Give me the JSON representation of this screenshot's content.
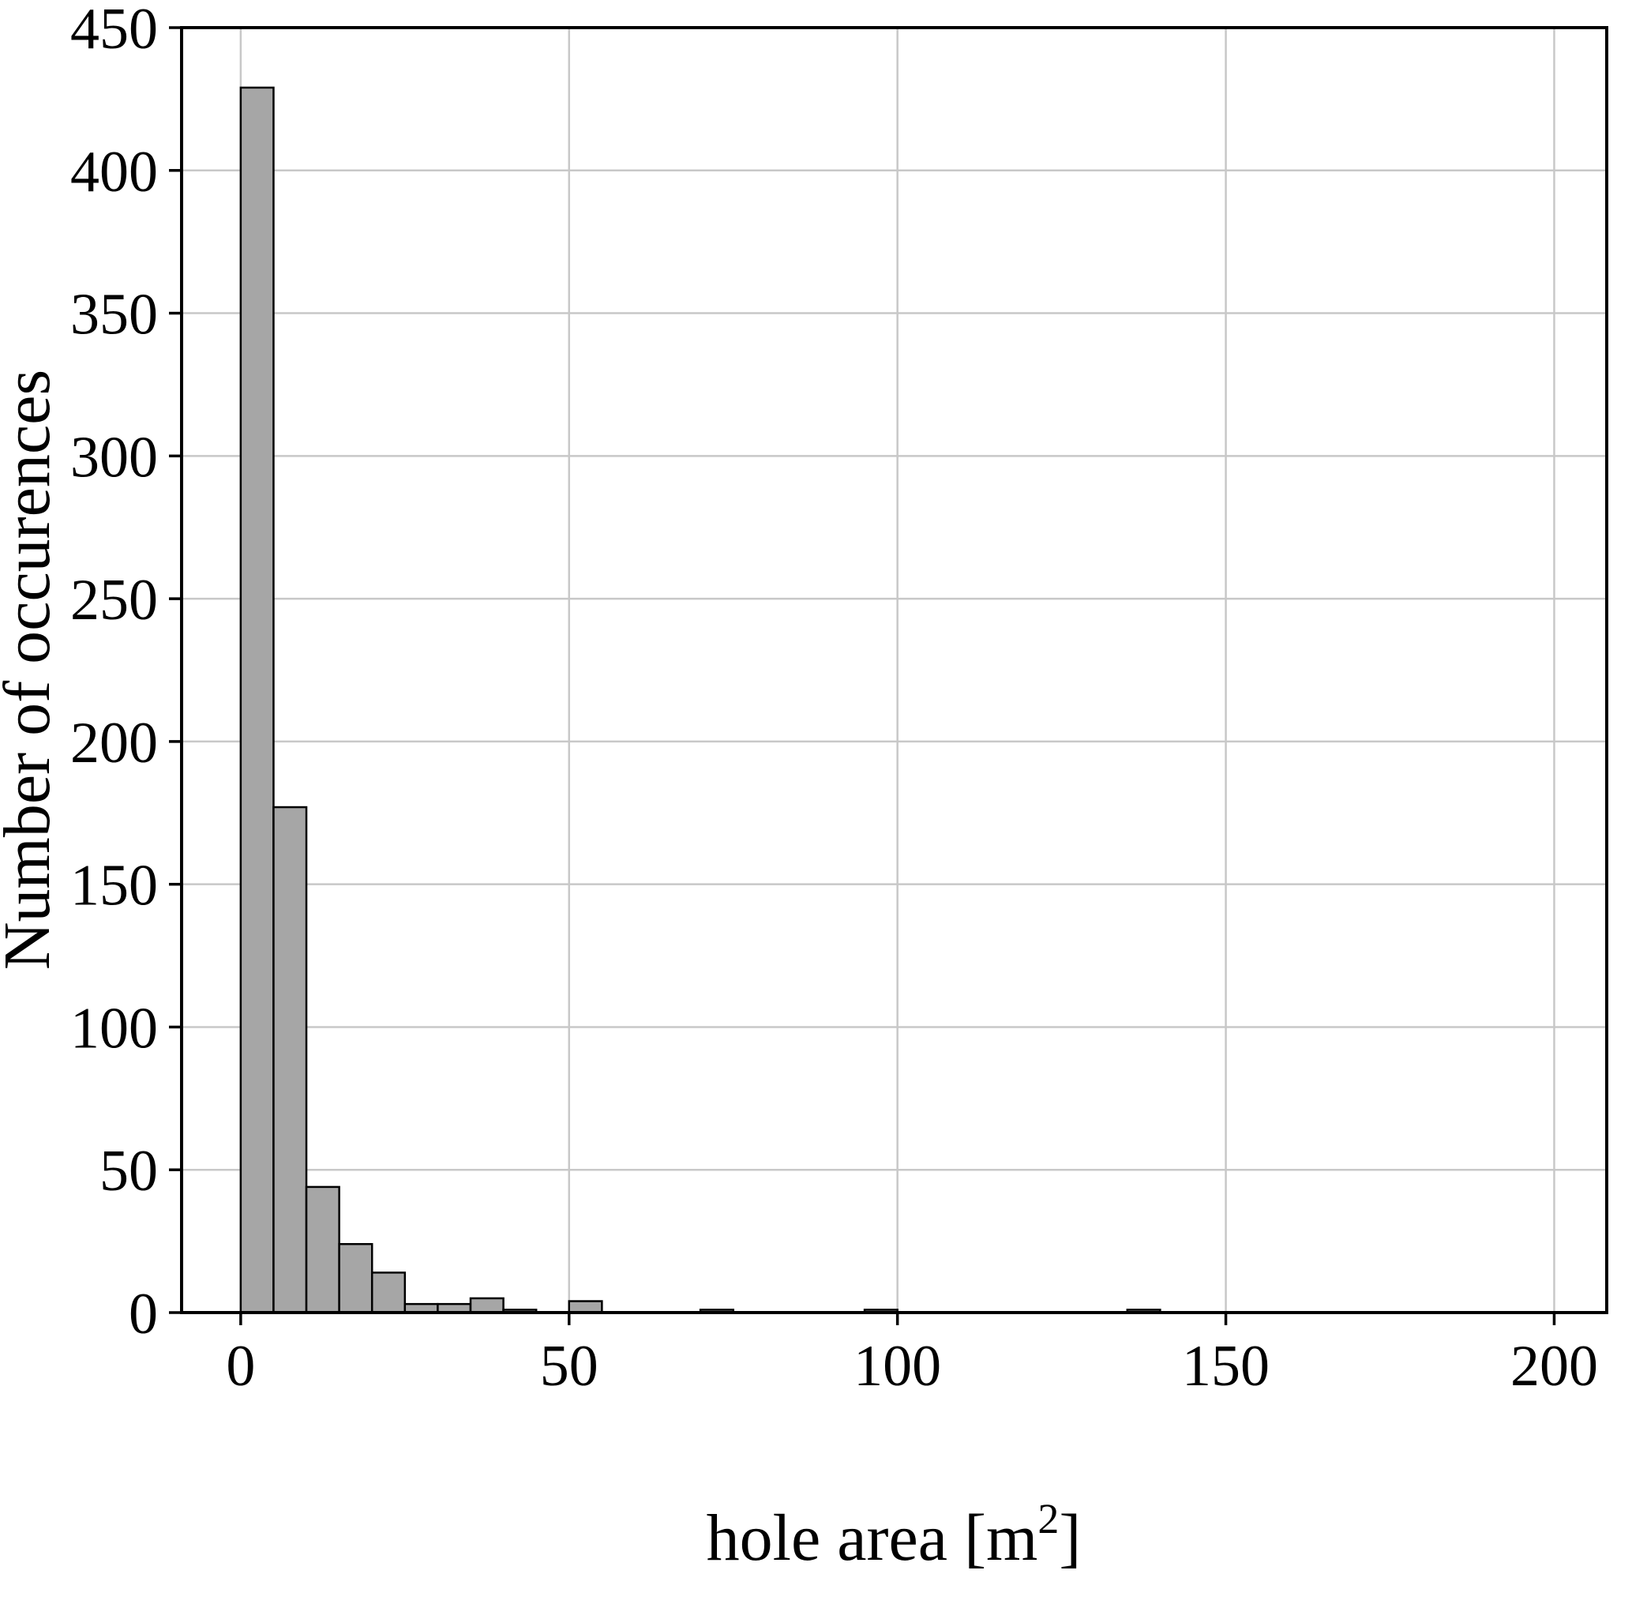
{
  "chart_data": {
    "type": "bar",
    "subtype": "histogram",
    "title": "",
    "xlabel_prefix": "hole area [m",
    "xlabel_sup": "2",
    "xlabel_suffix": "]",
    "ylabel": "Number of occurences",
    "xlim": [
      -9,
      208
    ],
    "ylim": [
      0,
      450
    ],
    "xticks": [
      0,
      50,
      100,
      150,
      200
    ],
    "yticks": [
      0,
      50,
      100,
      150,
      200,
      250,
      300,
      350,
      400,
      450
    ],
    "grid": true,
    "grid_color": "#c8c8c8",
    "background_color": "#ffffff",
    "bar_fill": "#a6a6a6",
    "bar_edge": "#000000",
    "spine_color": "#000000",
    "bins": [
      {
        "x0": 0,
        "x1": 5,
        "count": 429
      },
      {
        "x0": 5,
        "x1": 10,
        "count": 177
      },
      {
        "x0": 10,
        "x1": 15,
        "count": 44
      },
      {
        "x0": 15,
        "x1": 20,
        "count": 24
      },
      {
        "x0": 20,
        "x1": 25,
        "count": 14
      },
      {
        "x0": 25,
        "x1": 30,
        "count": 3
      },
      {
        "x0": 30,
        "x1": 35,
        "count": 3
      },
      {
        "x0": 35,
        "x1": 40,
        "count": 5
      },
      {
        "x0": 40,
        "x1": 45,
        "count": 1
      },
      {
        "x0": 50,
        "x1": 55,
        "count": 4
      },
      {
        "x0": 70,
        "x1": 75,
        "count": 1
      },
      {
        "x0": 95,
        "x1": 100,
        "count": 1
      },
      {
        "x0": 135,
        "x1": 140,
        "count": 1
      }
    ]
  }
}
